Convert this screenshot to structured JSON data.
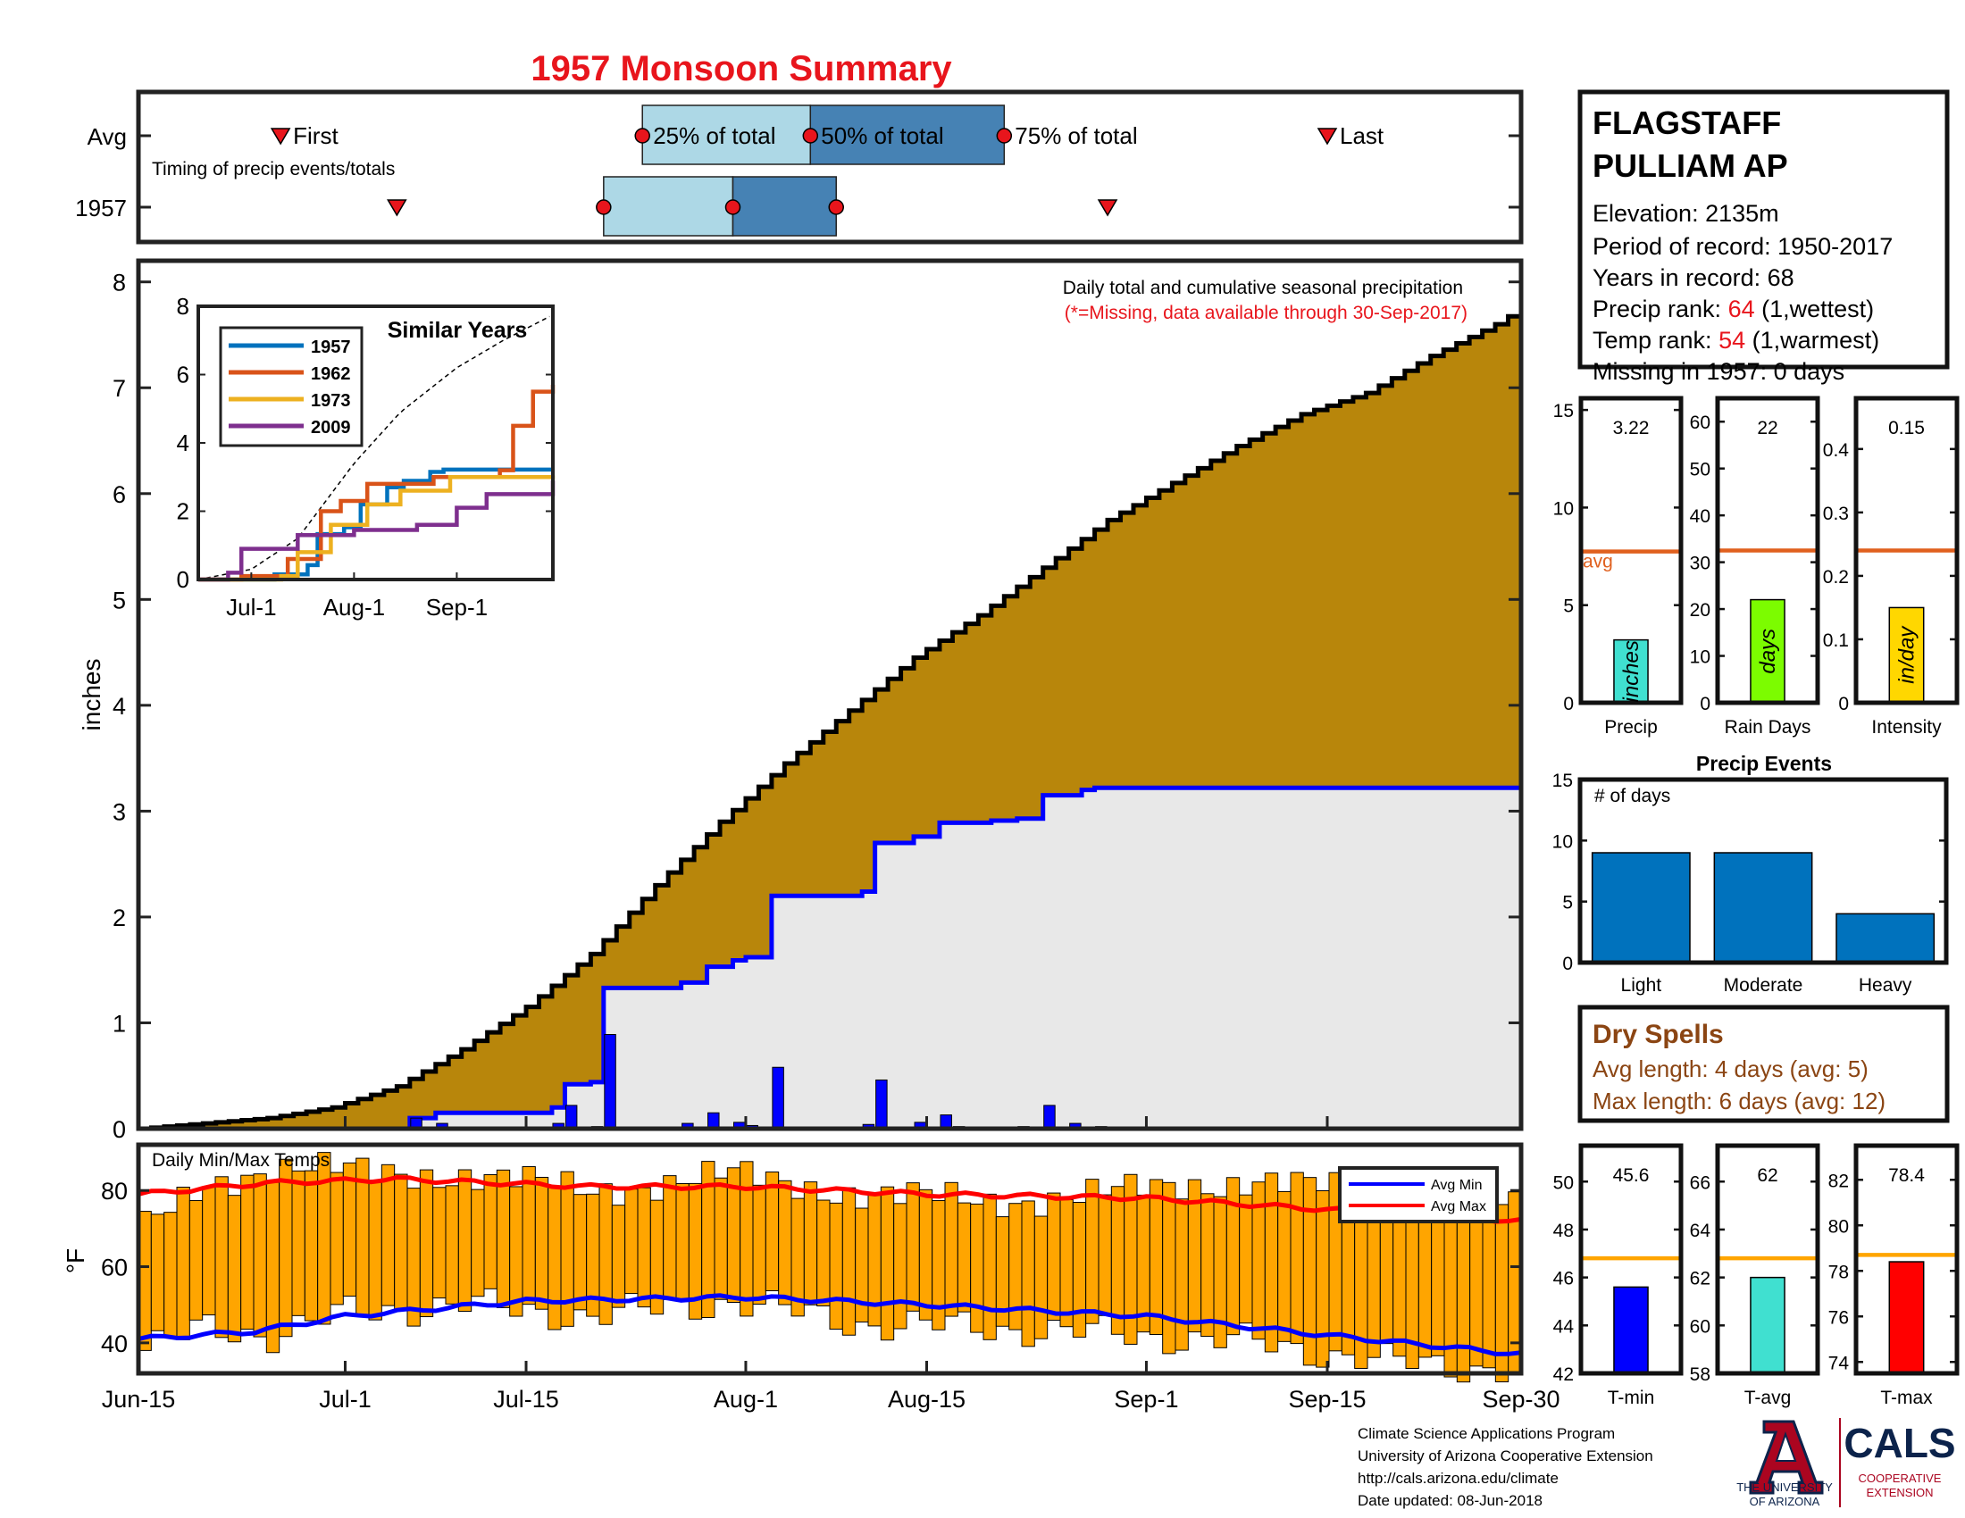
{
  "colors": {
    "title": "#e8151c",
    "note": "#e8151c",
    "rank_value": "#e8151c",
    "cumulative_avg_fill": "#b8860b",
    "cumulative_obs_fill": "#e8e8e8",
    "cumulative_obs_line": "#0000ff",
    "daily_bar": "#0000ff",
    "avg_line": "#e0601e",
    "timing_light": "#add8e6",
    "timing_dark": "#4682b4",
    "marker": "#e8151c",
    "temp_bar": "#ffa500",
    "temp_avg_min": "#0000ff",
    "temp_avg_max": "#ff0000",
    "events_bar": "#0072bd",
    "dry_text": "#8b4513",
    "bar_precip": "#40e0d0",
    "bar_raindays": "#7cfc00",
    "bar_intensity": "#ffd700",
    "bar_tmin": "#0000ff",
    "bar_tavg": "#40e0d0",
    "bar_tmax": "#ff0000",
    "temp_ref_line": "#ffa500",
    "logo_blue": "#0c234b",
    "logo_red": "#ab0520"
  },
  "title": "1957 Monsoon Summary",
  "timing": {
    "row_labels": [
      "Avg",
      "1957"
    ],
    "caption": "Timing of precip events/totals",
    "labels": {
      "first": "First",
      "p25": "25% of total",
      "p50": "50% of total",
      "p75": "75% of total",
      "last": "Last"
    },
    "avg": {
      "first": "2000-06-26",
      "p25": "2000-07-24",
      "p50": "2000-08-06",
      "p75": "2000-08-21",
      "last": "2000-09-15"
    },
    "year": {
      "first": "2000-07-05",
      "p25": "2000-07-21",
      "p50": "2000-07-31",
      "p75": "2000-08-08",
      "last": "2000-08-29"
    }
  },
  "station": {
    "name_line1": "FLAGSTAFF",
    "name_line2": "PULLIAM AP",
    "elevation": "Elevation: 2135m",
    "period": "Period of record: 1950-2017",
    "years": "Years in record: 68",
    "precip_rank_label": "Precip rank: ",
    "precip_rank_value": "64",
    "precip_rank_suffix": " (1,wettest)",
    "temp_rank_label": "Temp rank: ",
    "temp_rank_value": "54",
    "temp_rank_suffix": " (1,warmest)",
    "missing": "Missing in 1957: 0 days"
  },
  "main_note1": "Daily total and cumulative seasonal precipitation",
  "main_note2": "(*=Missing, data available through 30-Sep-2017)",
  "inset_title": "Similar Years",
  "temp_label": "Daily Min/Max Temps",
  "temp_legend": [
    "Avg Min",
    "Avg Max"
  ],
  "bottom_ticks": [
    "Jun-15",
    "Jul-1",
    "Jul-15",
    "Aug-1",
    "Aug-15",
    "Sep-1",
    "Sep-15",
    "Sep-30"
  ],
  "events_title": "Precip Events",
  "events_ylabel": "# of days",
  "dry_spells": {
    "title": "Dry Spells",
    "avg": "Avg length: 4 days (avg: 5)",
    "max": "Max length: 6 days (avg: 12)"
  },
  "footer": [
    "Climate Science Applications Program",
    "University of Arizona Cooperative Extension",
    "http://cals.arizona.edu/climate",
    " Date updated: 08-Jun-2018"
  ],
  "logos": {
    "ua_line1": "THE UNIVERSITY",
    "ua_line2": "OF ARIZONA",
    "cals": "CALS",
    "cals_sub1": "COOPERATIVE",
    "cals_sub2": "EXTENSION"
  },
  "chart_data": [
    {
      "type": "area",
      "name": "Daily total and cumulative seasonal precipitation",
      "x_range": [
        "2000-06-15",
        "2000-09-30"
      ],
      "ylabel": "inches",
      "ylim": [
        0,
        8.2
      ],
      "yticks": [
        0,
        1,
        2,
        3,
        4,
        5,
        6,
        7,
        8
      ],
      "xticks": [
        "Jun-15",
        "Jul-1",
        "Jul-15",
        "Aug-1",
        "Aug-15",
        "Sep-1",
        "Sep-15",
        "Sep-30"
      ],
      "cumulative_average": [
        [
          "2000-06-15",
          0.0
        ],
        [
          "2000-06-20",
          0.05
        ],
        [
          "2000-06-25",
          0.1
        ],
        [
          "2000-06-30",
          0.2
        ],
        [
          "2000-07-05",
          0.4
        ],
        [
          "2000-07-10",
          0.75
        ],
        [
          "2000-07-15",
          1.15
        ],
        [
          "2000-07-20",
          1.65
        ],
        [
          "2000-07-25",
          2.3
        ],
        [
          "2000-07-30",
          2.9
        ],
        [
          "2000-08-04",
          3.45
        ],
        [
          "2000-08-09",
          3.95
        ],
        [
          "2000-08-14",
          4.45
        ],
        [
          "2000-08-19",
          4.85
        ],
        [
          "2000-08-24",
          5.3
        ],
        [
          "2000-08-29",
          5.75
        ],
        [
          "2000-09-03",
          6.1
        ],
        [
          "2000-09-08",
          6.45
        ],
        [
          "2000-09-13",
          6.75
        ],
        [
          "2000-09-18",
          6.95
        ],
        [
          "2000-09-23",
          7.3
        ],
        [
          "2000-09-28",
          7.6
        ],
        [
          "2000-09-30",
          7.75
        ]
      ],
      "cumulative_1957": [
        [
          "2000-06-15",
          0.0
        ],
        [
          "2000-07-05",
          0.0
        ],
        [
          "2000-07-06",
          0.1
        ],
        [
          "2000-07-08",
          0.15
        ],
        [
          "2000-07-14",
          0.15
        ],
        [
          "2000-07-17",
          0.2
        ],
        [
          "2000-07-18",
          0.42
        ],
        [
          "2000-07-20",
          0.44
        ],
        [
          "2000-07-21",
          1.33
        ],
        [
          "2000-07-27",
          1.38
        ],
        [
          "2000-07-29",
          1.53
        ],
        [
          "2000-07-31",
          1.59
        ],
        [
          "2000-08-01",
          1.62
        ],
        [
          "2000-08-03",
          2.2
        ],
        [
          "2000-08-10",
          2.24
        ],
        [
          "2000-08-11",
          2.7
        ],
        [
          "2000-08-14",
          2.76
        ],
        [
          "2000-08-16",
          2.89
        ],
        [
          "2000-08-20",
          2.91
        ],
        [
          "2000-08-22",
          2.93
        ],
        [
          "2000-08-24",
          3.15
        ],
        [
          "2000-08-27",
          3.2
        ],
        [
          "2000-08-28",
          3.22
        ],
        [
          "2000-09-30",
          3.22
        ]
      ],
      "daily_1957": [
        [
          "2000-07-06",
          0.1
        ],
        [
          "2000-07-08",
          0.05
        ],
        [
          "2000-07-17",
          0.05
        ],
        [
          "2000-07-18",
          0.22
        ],
        [
          "2000-07-20",
          0.02
        ],
        [
          "2000-07-21",
          0.89
        ],
        [
          "2000-07-27",
          0.05
        ],
        [
          "2000-07-29",
          0.15
        ],
        [
          "2000-07-31",
          0.06
        ],
        [
          "2000-08-01",
          0.03
        ],
        [
          "2000-08-03",
          0.58
        ],
        [
          "2000-08-10",
          0.04
        ],
        [
          "2000-08-11",
          0.46
        ],
        [
          "2000-08-14",
          0.06
        ],
        [
          "2000-08-16",
          0.13
        ],
        [
          "2000-08-17",
          0.02
        ],
        [
          "2000-08-22",
          0.02
        ],
        [
          "2000-08-24",
          0.22
        ],
        [
          "2000-08-26",
          0.05
        ],
        [
          "2000-08-28",
          0.02
        ]
      ]
    },
    {
      "type": "line",
      "title": "Similar Years",
      "ylim": [
        0,
        8
      ],
      "yticks": [
        0,
        2,
        4,
        6,
        8
      ],
      "xticks": [
        "Jul-1",
        "Aug-1",
        "Sep-1"
      ],
      "x_range": [
        "2000-06-15",
        "2000-09-30"
      ],
      "average": [
        [
          "2000-06-15",
          0.0
        ],
        [
          "2000-07-01",
          0.3
        ],
        [
          "2000-07-15",
          1.2
        ],
        [
          "2000-08-01",
          3.4
        ],
        [
          "2000-08-15",
          4.9
        ],
        [
          "2000-09-01",
          6.2
        ],
        [
          "2000-09-15",
          7.0
        ],
        [
          "2000-09-30",
          7.75
        ]
      ],
      "series": [
        {
          "name": "1957",
          "color": "#0072bd",
          "points": [
            [
              "2000-06-15",
              0.0
            ],
            [
              "2000-07-05",
              0.0
            ],
            [
              "2000-07-08",
              0.15
            ],
            [
              "2000-07-18",
              0.42
            ],
            [
              "2000-07-21",
              1.33
            ],
            [
              "2000-07-29",
              1.53
            ],
            [
              "2000-08-03",
              2.2
            ],
            [
              "2000-08-11",
              2.7
            ],
            [
              "2000-08-16",
              2.89
            ],
            [
              "2000-08-24",
              3.15
            ],
            [
              "2000-08-28",
              3.22
            ],
            [
              "2000-09-30",
              3.22
            ]
          ]
        },
        {
          "name": "1962",
          "color": "#d95319",
          "points": [
            [
              "2000-06-15",
              0.0
            ],
            [
              "2000-06-28",
              0.1
            ],
            [
              "2000-07-12",
              0.6
            ],
            [
              "2000-07-22",
              2.0
            ],
            [
              "2000-07-28",
              2.3
            ],
            [
              "2000-08-05",
              2.8
            ],
            [
              "2000-08-25",
              3.0
            ],
            [
              "2000-09-14",
              3.2
            ],
            [
              "2000-09-18",
              4.5
            ],
            [
              "2000-09-24",
              5.5
            ],
            [
              "2000-09-30",
              5.7
            ]
          ]
        },
        {
          "name": "1973",
          "color": "#edb120",
          "points": [
            [
              "2000-06-15",
              0.0
            ],
            [
              "2000-07-10",
              0.1
            ],
            [
              "2000-07-15",
              0.8
            ],
            [
              "2000-07-25",
              1.6
            ],
            [
              "2000-08-05",
              2.2
            ],
            [
              "2000-08-15",
              2.6
            ],
            [
              "2000-08-30",
              3.0
            ],
            [
              "2000-09-30",
              3.05
            ]
          ]
        },
        {
          "name": "2009",
          "color": "#7e2f8e",
          "points": [
            [
              "2000-06-15",
              0.0
            ],
            [
              "2000-06-24",
              0.2
            ],
            [
              "2000-06-28",
              0.9
            ],
            [
              "2000-07-15",
              1.3
            ],
            [
              "2000-08-01",
              1.45
            ],
            [
              "2000-08-20",
              1.6
            ],
            [
              "2000-09-01",
              2.1
            ],
            [
              "2000-09-10",
              2.5
            ],
            [
              "2000-09-30",
              2.9
            ]
          ]
        }
      ]
    },
    {
      "type": "bar",
      "title": "Daily Min/Max Temps",
      "ylabel": "°F",
      "ylim": [
        32,
        92
      ],
      "yticks": [
        40,
        60,
        80
      ],
      "x_range": [
        "2000-06-15",
        "2000-09-30"
      ],
      "series": [
        {
          "name": "Avg Min"
        },
        {
          "name": "Avg Max"
        }
      ],
      "avg_min": [
        [
          "2000-06-15",
          41
        ],
        [
          "2000-06-24",
          43
        ],
        [
          "2000-07-01",
          47
        ],
        [
          "2000-07-15",
          51
        ],
        [
          "2000-08-01",
          52
        ],
        [
          "2000-08-15",
          50
        ],
        [
          "2000-09-01",
          47
        ],
        [
          "2000-09-15",
          42
        ],
        [
          "2000-09-30",
          37
        ]
      ],
      "avg_max": [
        [
          "2000-06-15",
          79
        ],
        [
          "2000-06-25",
          82
        ],
        [
          "2000-07-05",
          83
        ],
        [
          "2000-07-20",
          81
        ],
        [
          "2000-08-01",
          81
        ],
        [
          "2000-08-15",
          79
        ],
        [
          "2000-09-01",
          78
        ],
        [
          "2000-09-15",
          75
        ],
        [
          "2000-09-30",
          72
        ]
      ],
      "daily_anchor_dates": [
        "2000-06-15",
        "2000-06-20",
        "2000-06-25",
        "2000-07-01",
        "2000-07-10",
        "2000-07-20",
        "2000-07-31",
        "2000-08-10",
        "2000-08-20",
        "2000-09-01",
        "2000-09-10",
        "2000-09-20",
        "2000-09-30"
      ],
      "daily_min_anchor": [
        38,
        44,
        42,
        48,
        50,
        47,
        51,
        45,
        44,
        42,
        40,
        35,
        33
      ],
      "daily_max_anchor": [
        70,
        82,
        86,
        85,
        84,
        80,
        84,
        79,
        77,
        80,
        83,
        78,
        75
      ]
    },
    {
      "type": "bar",
      "title": "Precip",
      "value": 3.22,
      "value_label": "3.22",
      "unit": "inches",
      "avg": 7.75,
      "avg_label": "avg",
      "ylim": [
        0,
        15.6
      ],
      "yticks": [
        0,
        5,
        10,
        15
      ]
    },
    {
      "type": "bar",
      "title": "Rain Days",
      "value": 22,
      "value_label": "22",
      "unit": "days",
      "avg": 32.5,
      "ylim": [
        0,
        65
      ],
      "yticks": [
        0,
        10,
        20,
        30,
        40,
        50,
        60
      ]
    },
    {
      "type": "bar",
      "title": "Intensity",
      "value": 0.15,
      "value_label": "0.15",
      "unit": "in/day",
      "avg": 0.24,
      "ylim": [
        0,
        0.48
      ],
      "yticks": [
        0,
        0.1,
        0.2,
        0.3,
        0.4
      ]
    },
    {
      "type": "bar",
      "title": "Precip Events",
      "ylabel": "# of days",
      "categories": [
        "Light",
        "Moderate",
        "Heavy"
      ],
      "values": [
        9,
        9,
        4
      ],
      "ylim": [
        0,
        15
      ],
      "yticks": [
        0,
        5,
        10,
        15
      ]
    },
    {
      "type": "bar",
      "title": "T-min",
      "value": 45.6,
      "value_label": "45.6",
      "avg": 46.8,
      "ylim": [
        42,
        51.5
      ],
      "yticks": [
        42,
        44,
        46,
        48,
        50
      ]
    },
    {
      "type": "bar",
      "title": "T-avg",
      "value": 62,
      "value_label": "62",
      "avg": 62.8,
      "ylim": [
        58,
        67.5
      ],
      "yticks": [
        58,
        60,
        62,
        64,
        66
      ]
    },
    {
      "type": "bar",
      "title": "T-max",
      "value": 78.4,
      "value_label": "78.4",
      "avg": 78.7,
      "ylim": [
        73.5,
        83.5
      ],
      "yticks": [
        74,
        76,
        78,
        80,
        82
      ]
    }
  ]
}
